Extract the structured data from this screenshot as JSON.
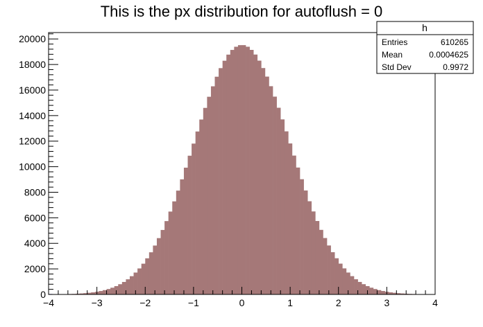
{
  "chart_data": {
    "type": "bar",
    "title": "This is the px distribution for autoflush = 0",
    "xlabel": "",
    "ylabel": "",
    "xlim": [
      -4,
      4
    ],
    "ylim": [
      0,
      20500
    ],
    "x_ticks": [
      -4,
      -3,
      -2,
      -1,
      0,
      1,
      2,
      3,
      4
    ],
    "y_ticks": [
      0,
      2000,
      4000,
      6000,
      8000,
      10000,
      12000,
      14000,
      16000,
      18000,
      20000
    ],
    "bin_width": 0.08,
    "grid": false,
    "colors": {
      "fill": "#a57878",
      "line": "#1a1a8c"
    },
    "stats_box": {
      "name": "h",
      "entries_label": "Entries",
      "entries_value": "610265",
      "mean_label": "Mean",
      "mean_value": "0.0004625",
      "std_label": "Std Dev",
      "std_value": "0.9972"
    }
  }
}
